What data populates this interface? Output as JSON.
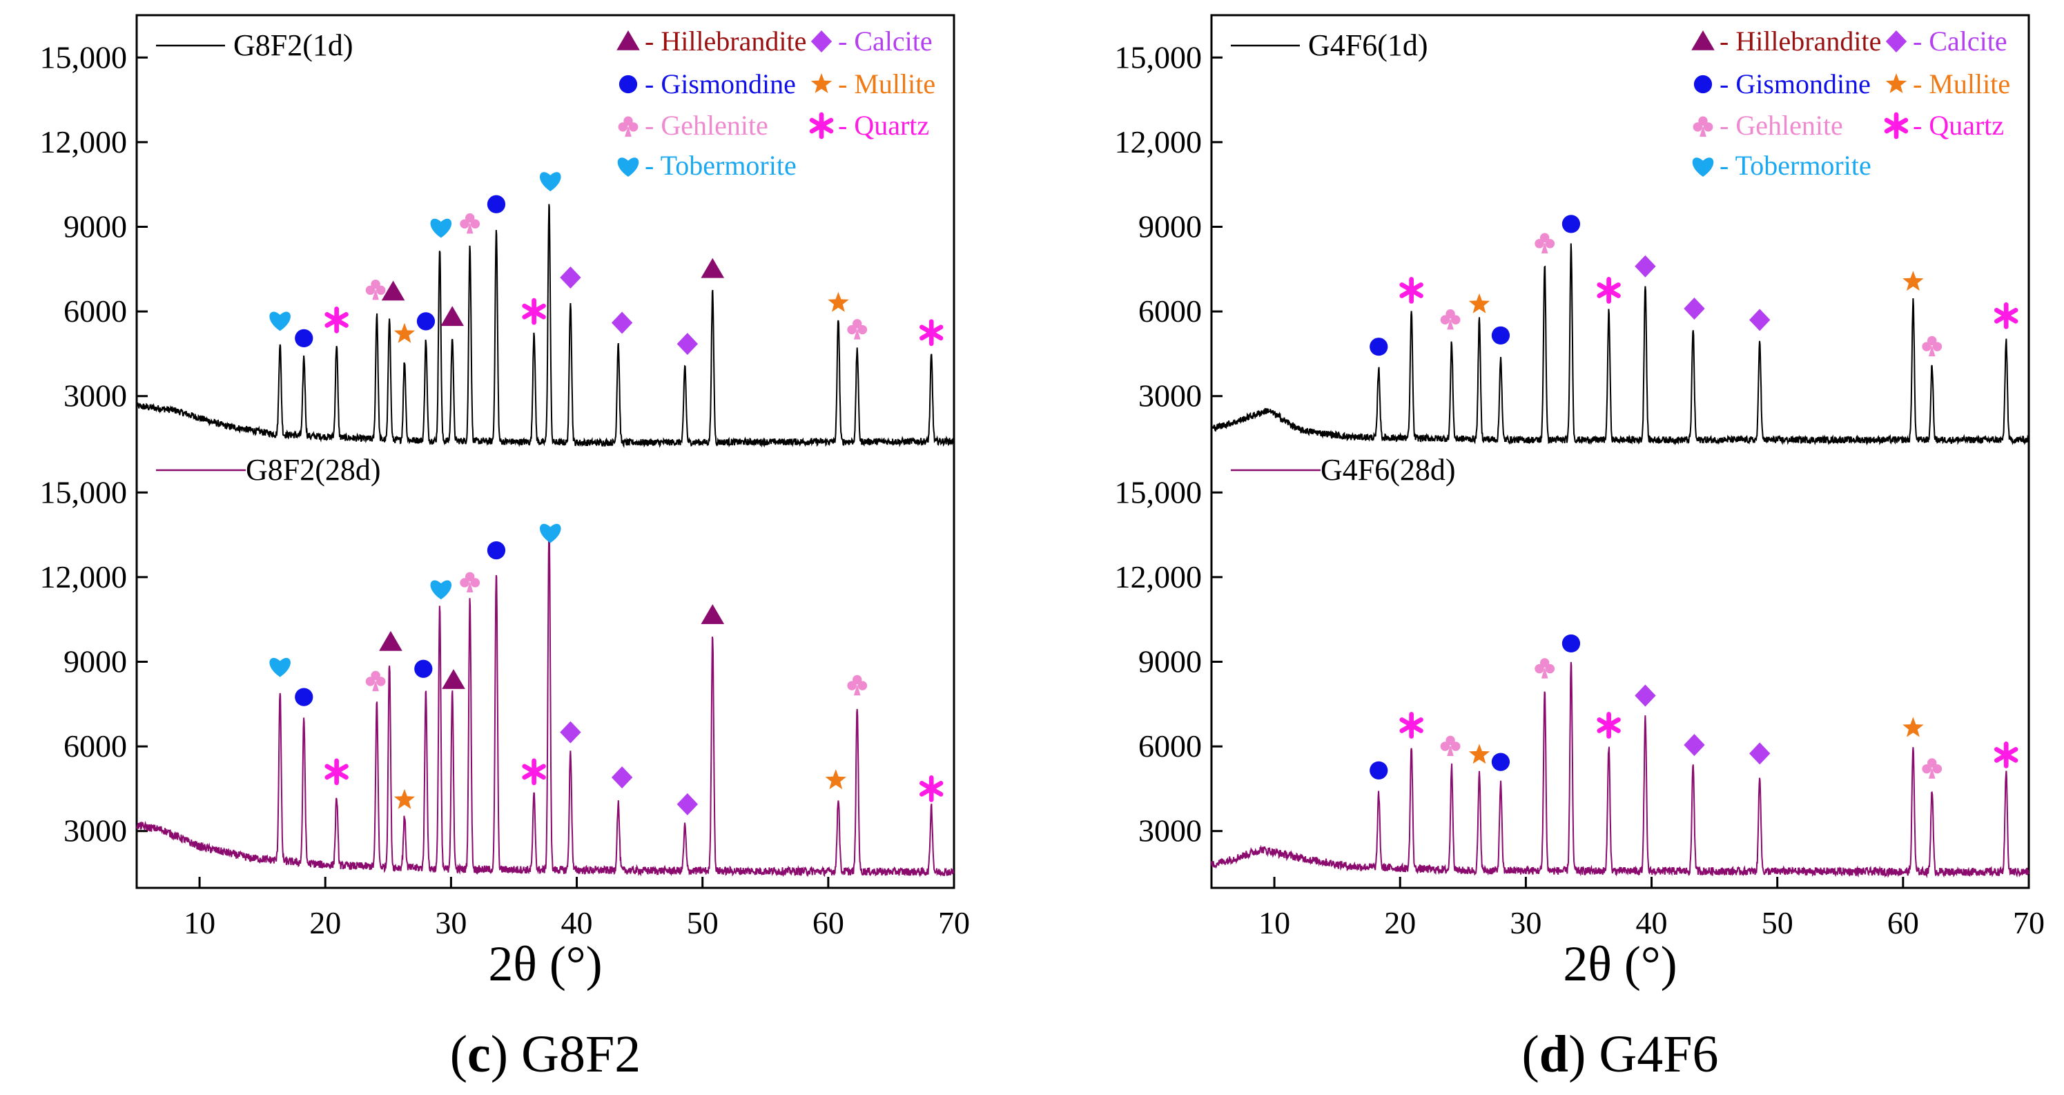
{
  "colors": {
    "black": "#000000",
    "purple_line": "#8b0a6e",
    "hillebrandite": "#8b0a6e",
    "calcite": "#b43ff0",
    "gismondine": "#1010e8",
    "mullite": "#f07a15",
    "gehlenite": "#f08ad0",
    "quartz": "#ff1ae6",
    "tobermorite": "#1aa8f0",
    "legend_hillebrandite_text": "#9a1010"
  },
  "legend": [
    {
      "key": "hillebrandite",
      "symbol": "triangle",
      "label": "- Hillebrandite"
    },
    {
      "key": "calcite",
      "symbol": "diamond",
      "label": "- Calcite"
    },
    {
      "key": "gismondine",
      "symbol": "circle",
      "label": "- Gismondine"
    },
    {
      "key": "mullite",
      "symbol": "star",
      "label": "- Mullite"
    },
    {
      "key": "gehlenite",
      "symbol": "club",
      "label": "- Gehlenite"
    },
    {
      "key": "quartz",
      "symbol": "asterisk",
      "label": "- Quartz"
    },
    {
      "key": "tobermorite",
      "symbol": "heart",
      "label": "- Tobermorite"
    }
  ],
  "chart_data": [
    {
      "type": "line",
      "panel_label": "(c) G8F2",
      "panel_label_bold": "c",
      "panel_label_rest": "G8F2",
      "xlabel": "2θ (°)",
      "xlim": [
        5,
        70
      ],
      "xticks": [
        10,
        20,
        30,
        40,
        50,
        60,
        70
      ],
      "ylabel": "",
      "series": [
        {
          "name": "G8F2(1d)",
          "color": "#000000",
          "ylim": [
            1500,
            16500
          ],
          "yticks": [
            "15,000",
            "12,000",
            "9000",
            "6000",
            "3000"
          ],
          "baseline": [
            [
              5,
              2650
            ],
            [
              8,
              2500
            ],
            [
              12,
              1950
            ],
            [
              16,
              1650
            ],
            [
              25,
              1450
            ],
            [
              40,
              1350
            ],
            [
              70,
              1400
            ]
          ],
          "peaks": [
            {
              "x": 16.4,
              "y": 4900
            },
            {
              "x": 18.3,
              "y": 4400
            },
            {
              "x": 20.9,
              "y": 4850
            },
            {
              "x": 24.1,
              "y": 5950
            },
            {
              "x": 25.1,
              "y": 5850
            },
            {
              "x": 26.3,
              "y": 4250
            },
            {
              "x": 28.0,
              "y": 5000
            },
            {
              "x": 29.1,
              "y": 8300
            },
            {
              "x": 30.1,
              "y": 5150
            },
            {
              "x": 31.5,
              "y": 8350
            },
            {
              "x": 33.6,
              "y": 8900
            },
            {
              "x": 36.6,
              "y": 5300
            },
            {
              "x": 37.8,
              "y": 9800
            },
            {
              "x": 39.5,
              "y": 6400
            },
            {
              "x": 43.3,
              "y": 4900
            },
            {
              "x": 48.6,
              "y": 4100
            },
            {
              "x": 50.8,
              "y": 6700
            },
            {
              "x": 60.8,
              "y": 5800
            },
            {
              "x": 62.3,
              "y": 4700
            },
            {
              "x": 68.2,
              "y": 4450
            }
          ],
          "markers": [
            {
              "phase": "tobermorite",
              "x": 16.4,
              "y": 5700
            },
            {
              "phase": "gismondine",
              "x": 18.3,
              "y": 5050
            },
            {
              "phase": "quartz",
              "x": 20.9,
              "y": 5700
            },
            {
              "phase": "gehlenite",
              "x": 24.0,
              "y": 6800
            },
            {
              "phase": "hillebrandite",
              "x": 25.4,
              "y": 6700
            },
            {
              "phase": "mullite",
              "x": 26.3,
              "y": 5200
            },
            {
              "phase": "gismondine",
              "x": 28.0,
              "y": 5650
            },
            {
              "phase": "tobermorite",
              "x": 29.2,
              "y": 9000
            },
            {
              "phase": "hillebrandite",
              "x": 30.1,
              "y": 5800
            },
            {
              "phase": "gehlenite",
              "x": 31.5,
              "y": 9150
            },
            {
              "phase": "gismondine",
              "x": 33.6,
              "y": 9800
            },
            {
              "phase": "quartz",
              "x": 36.6,
              "y": 6000
            },
            {
              "phase": "tobermorite",
              "x": 37.9,
              "y": 10650
            },
            {
              "phase": "calcite",
              "x": 39.5,
              "y": 7200
            },
            {
              "phase": "calcite",
              "x": 43.6,
              "y": 5600
            },
            {
              "phase": "calcite",
              "x": 48.8,
              "y": 4850
            },
            {
              "phase": "hillebrandite",
              "x": 50.8,
              "y": 7500
            },
            {
              "phase": "mullite",
              "x": 60.8,
              "y": 6300
            },
            {
              "phase": "gehlenite",
              "x": 62.3,
              "y": 5400
            },
            {
              "phase": "quartz",
              "x": 68.2,
              "y": 5250
            }
          ]
        },
        {
          "name": "G8F2(28d)",
          "color": "#8b0a6e",
          "ylim": [
            1500,
            16500
          ],
          "yticks": [
            "15,000",
            "12,000",
            "9000",
            "6000",
            "3000"
          ],
          "baseline": [
            [
              5,
              3200
            ],
            [
              7,
              3050
            ],
            [
              10,
              2450
            ],
            [
              14,
              2050
            ],
            [
              20,
              1800
            ],
            [
              30,
              1650
            ],
            [
              45,
              1600
            ],
            [
              70,
              1550
            ]
          ],
          "peaks": [
            {
              "x": 16.4,
              "y": 8000
            },
            {
              "x": 18.3,
              "y": 7000
            },
            {
              "x": 20.9,
              "y": 4200
            },
            {
              "x": 24.1,
              "y": 7600
            },
            {
              "x": 25.1,
              "y": 9000
            },
            {
              "x": 26.3,
              "y": 3500
            },
            {
              "x": 28.0,
              "y": 8000
            },
            {
              "x": 29.1,
              "y": 11000
            },
            {
              "x": 30.1,
              "y": 7900
            },
            {
              "x": 31.5,
              "y": 11200
            },
            {
              "x": 33.6,
              "y": 12200
            },
            {
              "x": 36.6,
              "y": 4300
            },
            {
              "x": 37.8,
              "y": 13800
            },
            {
              "x": 39.5,
              "y": 5800
            },
            {
              "x": 43.3,
              "y": 4000
            },
            {
              "x": 48.6,
              "y": 3200
            },
            {
              "x": 50.8,
              "y": 10000
            },
            {
              "x": 60.8,
              "y": 4200
            },
            {
              "x": 62.3,
              "y": 7400
            },
            {
              "x": 68.2,
              "y": 3900
            }
          ],
          "markers": [
            {
              "phase": "tobermorite",
              "x": 16.4,
              "y": 8850
            },
            {
              "phase": "gismondine",
              "x": 18.3,
              "y": 7750
            },
            {
              "phase": "quartz",
              "x": 20.9,
              "y": 5100
            },
            {
              "phase": "gehlenite",
              "x": 24.0,
              "y": 8350
            },
            {
              "phase": "hillebrandite",
              "x": 25.2,
              "y": 9700
            },
            {
              "phase": "mullite",
              "x": 26.3,
              "y": 4100
            },
            {
              "phase": "gismondine",
              "x": 27.8,
              "y": 8750
            },
            {
              "phase": "tobermorite",
              "x": 29.2,
              "y": 11600
            },
            {
              "phase": "hillebrandite",
              "x": 30.2,
              "y": 8350
            },
            {
              "phase": "gehlenite",
              "x": 31.5,
              "y": 11850
            },
            {
              "phase": "gismondine",
              "x": 33.6,
              "y": 12950
            },
            {
              "phase": "quartz",
              "x": 36.6,
              "y": 5100
            },
            {
              "phase": "tobermorite",
              "x": 37.9,
              "y": 13600
            },
            {
              "phase": "calcite",
              "x": 39.5,
              "y": 6500
            },
            {
              "phase": "calcite",
              "x": 43.6,
              "y": 4900
            },
            {
              "phase": "calcite",
              "x": 48.8,
              "y": 3950
            },
            {
              "phase": "hillebrandite",
              "x": 50.8,
              "y": 10650
            },
            {
              "phase": "mullite",
              "x": 60.6,
              "y": 4800
            },
            {
              "phase": "gehlenite",
              "x": 62.3,
              "y": 8200
            },
            {
              "phase": "quartz",
              "x": 68.2,
              "y": 4500
            }
          ]
        }
      ]
    },
    {
      "type": "line",
      "panel_label": "(d) G4F6",
      "panel_label_bold": "d",
      "panel_label_rest": "G4F6",
      "xlabel": "2θ (°)",
      "xlim": [
        5,
        70
      ],
      "xticks": [
        10,
        20,
        30,
        40,
        50,
        60,
        70
      ],
      "ylabel": "",
      "series": [
        {
          "name": "G4F6(1d)",
          "color": "#000000",
          "ylim": [
            1500,
            16500
          ],
          "yticks": [
            "15,000",
            "12,000",
            "9000",
            "6000",
            "3000"
          ],
          "baseline": [
            [
              5,
              1850
            ],
            [
              7,
              2100
            ],
            [
              9.5,
              2500
            ],
            [
              12,
              1800
            ],
            [
              16,
              1550
            ],
            [
              30,
              1450
            ],
            [
              70,
              1450
            ]
          ],
          "peaks": [
            {
              "x": 18.3,
              "y": 4000
            },
            {
              "x": 20.9,
              "y": 6000
            },
            {
              "x": 24.1,
              "y": 4900
            },
            {
              "x": 26.3,
              "y": 5700
            },
            {
              "x": 28.0,
              "y": 4400
            },
            {
              "x": 31.5,
              "y": 7700
            },
            {
              "x": 33.6,
              "y": 8400
            },
            {
              "x": 36.6,
              "y": 6000
            },
            {
              "x": 39.5,
              "y": 7000
            },
            {
              "x": 43.3,
              "y": 5400
            },
            {
              "x": 48.6,
              "y": 5000
            },
            {
              "x": 60.8,
              "y": 6400
            },
            {
              "x": 62.3,
              "y": 4100
            },
            {
              "x": 68.2,
              "y": 5000
            }
          ],
          "markers": [
            {
              "phase": "gismondine",
              "x": 18.3,
              "y": 4750
            },
            {
              "phase": "quartz",
              "x": 20.9,
              "y": 6750
            },
            {
              "phase": "gehlenite",
              "x": 24.0,
              "y": 5750
            },
            {
              "phase": "mullite",
              "x": 26.3,
              "y": 6250
            },
            {
              "phase": "gismondine",
              "x": 28.0,
              "y": 5150
            },
            {
              "phase": "gehlenite",
              "x": 31.5,
              "y": 8450
            },
            {
              "phase": "gismondine",
              "x": 33.6,
              "y": 9100
            },
            {
              "phase": "quartz",
              "x": 36.6,
              "y": 6750
            },
            {
              "phase": "calcite",
              "x": 39.5,
              "y": 7600
            },
            {
              "phase": "calcite",
              "x": 43.4,
              "y": 6100
            },
            {
              "phase": "calcite",
              "x": 48.6,
              "y": 5700
            },
            {
              "phase": "mullite",
              "x": 60.8,
              "y": 7050
            },
            {
              "phase": "gehlenite",
              "x": 62.3,
              "y": 4800
            },
            {
              "phase": "quartz",
              "x": 68.2,
              "y": 5850
            }
          ]
        },
        {
          "name": "G4F6(28d)",
          "color": "#8b0a6e",
          "ylim": [
            1500,
            16500
          ],
          "yticks": [
            "15,000",
            "12,000",
            "9000",
            "6000",
            "3000"
          ],
          "baseline": [
            [
              5,
              1800
            ],
            [
              7,
              2050
            ],
            [
              9,
              2350
            ],
            [
              12,
              2050
            ],
            [
              16,
              1750
            ],
            [
              25,
              1600
            ],
            [
              70,
              1550
            ]
          ],
          "peaks": [
            {
              "x": 18.3,
              "y": 4300
            },
            {
              "x": 20.9,
              "y": 6000
            },
            {
              "x": 24.1,
              "y": 5300
            },
            {
              "x": 26.3,
              "y": 5000
            },
            {
              "x": 28.0,
              "y": 4700
            },
            {
              "x": 31.5,
              "y": 8000
            },
            {
              "x": 33.6,
              "y": 9000
            },
            {
              "x": 36.6,
              "y": 6000
            },
            {
              "x": 39.5,
              "y": 7000
            },
            {
              "x": 43.3,
              "y": 5400
            },
            {
              "x": 48.6,
              "y": 5000
            },
            {
              "x": 60.8,
              "y": 6000
            },
            {
              "x": 62.3,
              "y": 4500
            },
            {
              "x": 68.2,
              "y": 5100
            }
          ],
          "markers": [
            {
              "phase": "gismondine",
              "x": 18.3,
              "y": 5150
            },
            {
              "phase": "quartz",
              "x": 20.9,
              "y": 6750
            },
            {
              "phase": "gehlenite",
              "x": 24.0,
              "y": 6050
            },
            {
              "phase": "mullite",
              "x": 26.3,
              "y": 5700
            },
            {
              "phase": "gismondine",
              "x": 28.0,
              "y": 5450
            },
            {
              "phase": "gehlenite",
              "x": 31.5,
              "y": 8800
            },
            {
              "phase": "gismondine",
              "x": 33.6,
              "y": 9650
            },
            {
              "phase": "quartz",
              "x": 36.6,
              "y": 6750
            },
            {
              "phase": "calcite",
              "x": 39.5,
              "y": 7800
            },
            {
              "phase": "calcite",
              "x": 43.4,
              "y": 6050
            },
            {
              "phase": "calcite",
              "x": 48.6,
              "y": 5750
            },
            {
              "phase": "mullite",
              "x": 60.8,
              "y": 6650
            },
            {
              "phase": "gehlenite",
              "x": 62.3,
              "y": 5250
            },
            {
              "phase": "quartz",
              "x": 68.2,
              "y": 5700
            }
          ]
        }
      ]
    }
  ]
}
